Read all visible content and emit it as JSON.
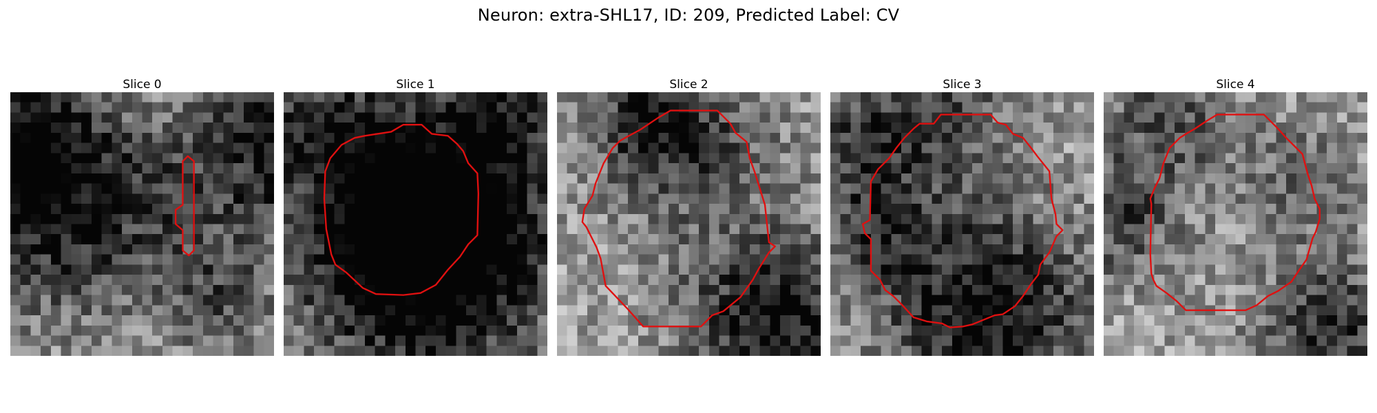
{
  "figure": {
    "title": "Neuron: extra-SHL17, ID: 209, Predicted Label: CV"
  },
  "colors": {
    "contour": "#e01010",
    "background": "#ffffff"
  },
  "panels": [
    {
      "title": "Slice 0",
      "seed": 17,
      "dark": [
        [
          0,
          4,
          6,
          0.55
        ],
        [
          5,
          12,
          7,
          0.45
        ],
        [
          25,
          1,
          4,
          0.5
        ],
        [
          27,
          9,
          4,
          0.35
        ],
        [
          18,
          9,
          5,
          0.25
        ],
        [
          20,
          20,
          4,
          0.3
        ]
      ],
      "contour": [
        [
          17.0,
          6.8
        ],
        [
          17.5,
          6.3
        ],
        [
          18.1,
          6.8
        ],
        [
          18.1,
          15.6
        ],
        [
          17.6,
          16.1
        ],
        [
          17.0,
          15.6
        ],
        [
          17.0,
          13.6
        ],
        [
          16.3,
          13.0
        ],
        [
          16.3,
          11.6
        ],
        [
          17.0,
          11.1
        ]
      ]
    },
    {
      "title": "Slice 1",
      "seed": 29,
      "dark": [
        [
          14,
          11,
          9,
          0.6
        ],
        [
          13,
          16,
          8,
          0.5
        ],
        [
          3,
          3,
          4,
          0.35
        ],
        [
          22,
          2,
          3,
          0.3
        ]
      ],
      "contour": [
        [
          8.0,
          4.3
        ],
        [
          10.6,
          3.9
        ],
        [
          11.8,
          3.2
        ],
        [
          13.6,
          3.2
        ],
        [
          14.6,
          4.1
        ],
        [
          16.2,
          4.3
        ],
        [
          17.1,
          5.1
        ],
        [
          17.7,
          5.8
        ],
        [
          18.2,
          7.0
        ],
        [
          19.1,
          8.0
        ],
        [
          19.2,
          10.0
        ],
        [
          19.1,
          14.1
        ],
        [
          18.2,
          15.0
        ],
        [
          17.4,
          16.2
        ],
        [
          16.2,
          17.5
        ],
        [
          15.0,
          19.0
        ],
        [
          13.5,
          19.8
        ],
        [
          11.8,
          20.0
        ],
        [
          9.1,
          19.9
        ],
        [
          7.8,
          19.3
        ],
        [
          6.2,
          17.8
        ],
        [
          5.1,
          17.0
        ],
        [
          4.7,
          16.0
        ],
        [
          4.2,
          13.5
        ],
        [
          4.0,
          10.5
        ],
        [
          4.1,
          7.8
        ],
        [
          4.6,
          6.5
        ],
        [
          5.7,
          5.2
        ],
        [
          7.0,
          4.5
        ]
      ]
    },
    {
      "title": "Slice 2",
      "seed": 41,
      "dark": [
        [
          12,
          4,
          6,
          0.4
        ],
        [
          21,
          22,
          6,
          0.6
        ],
        [
          8,
          2,
          3,
          0.3
        ]
      ],
      "contour": [
        [
          10.0,
          2.5
        ],
        [
          11.2,
          1.8
        ],
        [
          15.8,
          1.8
        ],
        [
          17.1,
          3.1
        ],
        [
          17.6,
          4.0
        ],
        [
          18.7,
          4.9
        ],
        [
          19.0,
          6.5
        ],
        [
          19.5,
          7.9
        ],
        [
          20.5,
          11.1
        ],
        [
          20.9,
          14.8
        ],
        [
          21.5,
          15.2
        ],
        [
          20.9,
          15.8
        ],
        [
          19.9,
          17.4
        ],
        [
          19.3,
          18.5
        ],
        [
          18.1,
          20.2
        ],
        [
          16.4,
          21.6
        ],
        [
          15.3,
          22.0
        ],
        [
          14.2,
          23.1
        ],
        [
          8.5,
          23.1
        ],
        [
          6.9,
          21.3
        ],
        [
          4.8,
          19.1
        ],
        [
          4.3,
          16.4
        ],
        [
          3.9,
          15.3
        ],
        [
          2.9,
          13.3
        ],
        [
          2.5,
          12.8
        ],
        [
          2.7,
          11.5
        ],
        [
          3.5,
          10.2
        ],
        [
          3.8,
          9.0
        ],
        [
          4.6,
          7.0
        ],
        [
          5.5,
          5.5
        ],
        [
          6.2,
          4.8
        ],
        [
          6.9,
          4.4
        ],
        [
          8.2,
          3.7
        ]
      ]
    },
    {
      "title": "Slice 3",
      "seed": 53,
      "dark": [
        [
          15,
          21,
          7,
          0.6
        ],
        [
          4,
          13,
          4,
          0.35
        ],
        [
          2,
          4,
          4,
          0.3
        ],
        [
          10,
          2,
          5,
          0.35
        ]
      ],
      "contour": [
        [
          8.2,
          3.6
        ],
        [
          8.8,
          3.1
        ],
        [
          10.2,
          3.1
        ],
        [
          10.9,
          2.2
        ],
        [
          15.8,
          2.2
        ],
        [
          16.5,
          3.0
        ],
        [
          17.3,
          3.2
        ],
        [
          18.0,
          4.1
        ],
        [
          19.0,
          4.5
        ],
        [
          19.8,
          5.5
        ],
        [
          20.4,
          6.3
        ],
        [
          21.6,
          7.8
        ],
        [
          21.8,
          10.5
        ],
        [
          22.2,
          12.0
        ],
        [
          22.3,
          13.0
        ],
        [
          22.9,
          13.6
        ],
        [
          22.3,
          14.2
        ],
        [
          21.6,
          15.8
        ],
        [
          20.7,
          17.0
        ],
        [
          20.5,
          18.0
        ],
        [
          19.8,
          18.9
        ],
        [
          19.0,
          20.1
        ],
        [
          18.2,
          21.1
        ],
        [
          17.0,
          21.9
        ],
        [
          16.2,
          22.0
        ],
        [
          14.0,
          22.9
        ],
        [
          13.1,
          23.1
        ],
        [
          11.8,
          23.2
        ],
        [
          11.0,
          22.8
        ],
        [
          9.5,
          22.6
        ],
        [
          8.2,
          22.2
        ],
        [
          7.1,
          21.0
        ],
        [
          6.2,
          20.1
        ],
        [
          5.4,
          19.5
        ],
        [
          4.9,
          18.5
        ],
        [
          4.0,
          17.6
        ],
        [
          4.0,
          14.5
        ],
        [
          3.4,
          13.9
        ],
        [
          3.2,
          13.0
        ],
        [
          3.9,
          12.6
        ],
        [
          4.0,
          8.8
        ],
        [
          4.7,
          7.6
        ],
        [
          5.8,
          6.5
        ],
        [
          6.5,
          5.5
        ],
        [
          7.3,
          4.5
        ]
      ]
    },
    {
      "title": "Slice 4",
      "seed": 67,
      "dark": [
        [
          22,
          23,
          5,
          0.45
        ],
        [
          1,
          12,
          4,
          0.35
        ],
        [
          6,
          2,
          5,
          0.3
        ],
        [
          19,
          8,
          4,
          0.25
        ]
      ],
      "contour": [
        [
          9.0,
          3.6
        ],
        [
          10.2,
          2.8
        ],
        [
          11.2,
          2.2
        ],
        [
          15.8,
          2.2
        ],
        [
          17.1,
          3.5
        ],
        [
          18.0,
          4.5
        ],
        [
          19.0,
          5.5
        ],
        [
          19.6,
          6.1
        ],
        [
          20.1,
          8.0
        ],
        [
          20.5,
          9.2
        ],
        [
          20.8,
          10.5
        ],
        [
          21.3,
          11.5
        ],
        [
          21.3,
          12.5
        ],
        [
          20.9,
          13.8
        ],
        [
          20.6,
          14.4
        ],
        [
          20.0,
          16.5
        ],
        [
          19.3,
          17.5
        ],
        [
          18.5,
          18.7
        ],
        [
          17.2,
          19.6
        ],
        [
          16.2,
          20.1
        ],
        [
          15.1,
          21.0
        ],
        [
          14.0,
          21.5
        ],
        [
          8.1,
          21.5
        ],
        [
          7.2,
          20.6
        ],
        [
          6.2,
          19.8
        ],
        [
          5.2,
          19.1
        ],
        [
          4.9,
          18.5
        ],
        [
          4.7,
          17.9
        ],
        [
          4.6,
          16.0
        ],
        [
          4.7,
          11.0
        ],
        [
          4.6,
          10.5
        ],
        [
          5.0,
          9.5
        ],
        [
          5.5,
          8.5
        ],
        [
          5.9,
          7.0
        ],
        [
          6.5,
          5.5
        ],
        [
          7.5,
          4.5
        ],
        [
          8.3,
          4.0
        ]
      ]
    }
  ]
}
